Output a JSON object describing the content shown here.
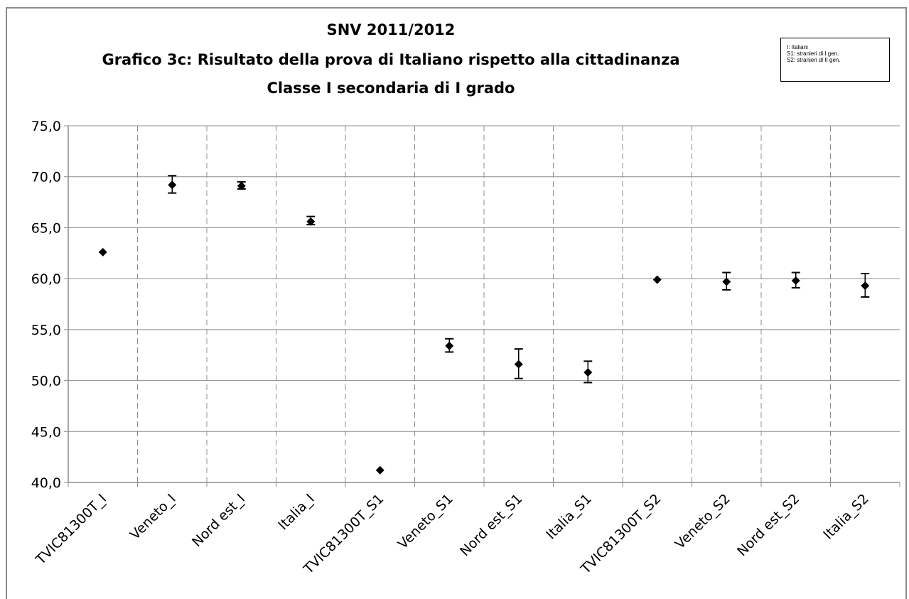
{
  "chart_data": {
    "type": "scatter",
    "title": "SNV 2011/2012",
    "subtitle_lines": [
      "Grafico 3c: Risultato della prova di Italiano rispetto alla cittadinanza",
      "Classe I secondaria di I grado"
    ],
    "legend_lines": [
      "I:   Italiani",
      "S1:  stranieri di I gen.",
      "S2:  stranieri di II gen."
    ],
    "ylim": [
      40,
      75
    ],
    "yticks": [
      "40,0",
      "45,0",
      "50,0",
      "55,0",
      "60,0",
      "65,0",
      "70,0",
      "75,0"
    ],
    "categories": [
      "TVIC81300T_I",
      "Veneto_I",
      "Nord est_I",
      "Italia_I",
      "TVIC81300T_S1",
      "Veneto_S1",
      "Nord est_S1",
      "Italia_S1",
      "TVIC81300T_S2",
      "Veneto_S2",
      "Nord est_S2",
      "Italia_S2"
    ],
    "values": [
      62.6,
      69.2,
      69.1,
      65.6,
      41.2,
      53.4,
      51.6,
      50.8,
      59.9,
      59.7,
      59.8,
      59.3
    ],
    "error_low": [
      null,
      68.4,
      68.8,
      65.3,
      null,
      52.8,
      50.2,
      49.8,
      null,
      58.9,
      59.1,
      58.2
    ],
    "error_high": [
      null,
      70.1,
      69.5,
      66.1,
      null,
      54.1,
      53.1,
      51.9,
      null,
      60.6,
      60.6,
      60.5
    ],
    "grid": "vertical dashed, horizontal solid",
    "legend_position": "top-right",
    "marker_color": "#000000"
  }
}
